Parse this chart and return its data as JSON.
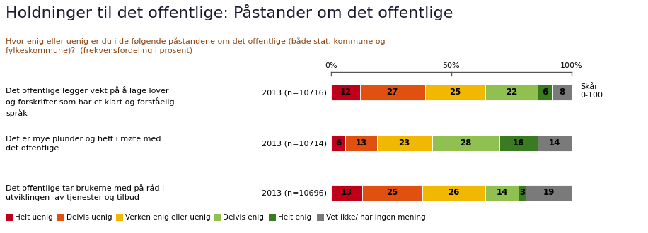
{
  "title": "Holdninger til det offentlige: Påstander om det offentlige",
  "subtitle_line1": "Hvor enig eller uenig er du i de følgende påstandene om det offentlige (både stat, kommune og",
  "subtitle_line2": "fylkeskommune)?  (frekvensfordeling i prosent)",
  "title_color": "#1A1A2E",
  "subtitle_color": "#8B4513",
  "rows": [
    {
      "label_line1": "Det offentlige legger vekt på å lage lover",
      "label_line2": "og forskrifter som har et klart og forståelig",
      "label_line3": "språk",
      "year_label": "2013 (n=10716)",
      "values": [
        12,
        27,
        25,
        22,
        6,
        8
      ]
    },
    {
      "label_line1": "Det er mye plunder og heft i møte med",
      "label_line2": "det offentlige",
      "label_line3": "",
      "year_label": "2013 (n=10714)",
      "values": [
        6,
        13,
        23,
        28,
        16,
        14
      ]
    },
    {
      "label_line1": "Det offentlige tar brukerne med på råd i",
      "label_line2": "utviklingen  av tjenester og tilbud",
      "label_line3": "",
      "year_label": "2013 (n=10696)",
      "values": [
        13,
        25,
        26,
        14,
        3,
        19
      ]
    }
  ],
  "colors": [
    "#C0001A",
    "#E05010",
    "#F0B800",
    "#90C050",
    "#3A7A20",
    "#7A7A7A"
  ],
  "legend_labels": [
    "Helt uenig",
    "Delvis uenig",
    "Verken enig eller uenig",
    "Delvis enig",
    "Helt enig",
    "Vet ikke/ har ingen mening"
  ],
  "score_label_line1": "Skår",
  "score_label_line2": "0-100",
  "background_color": "#FFFFFF"
}
